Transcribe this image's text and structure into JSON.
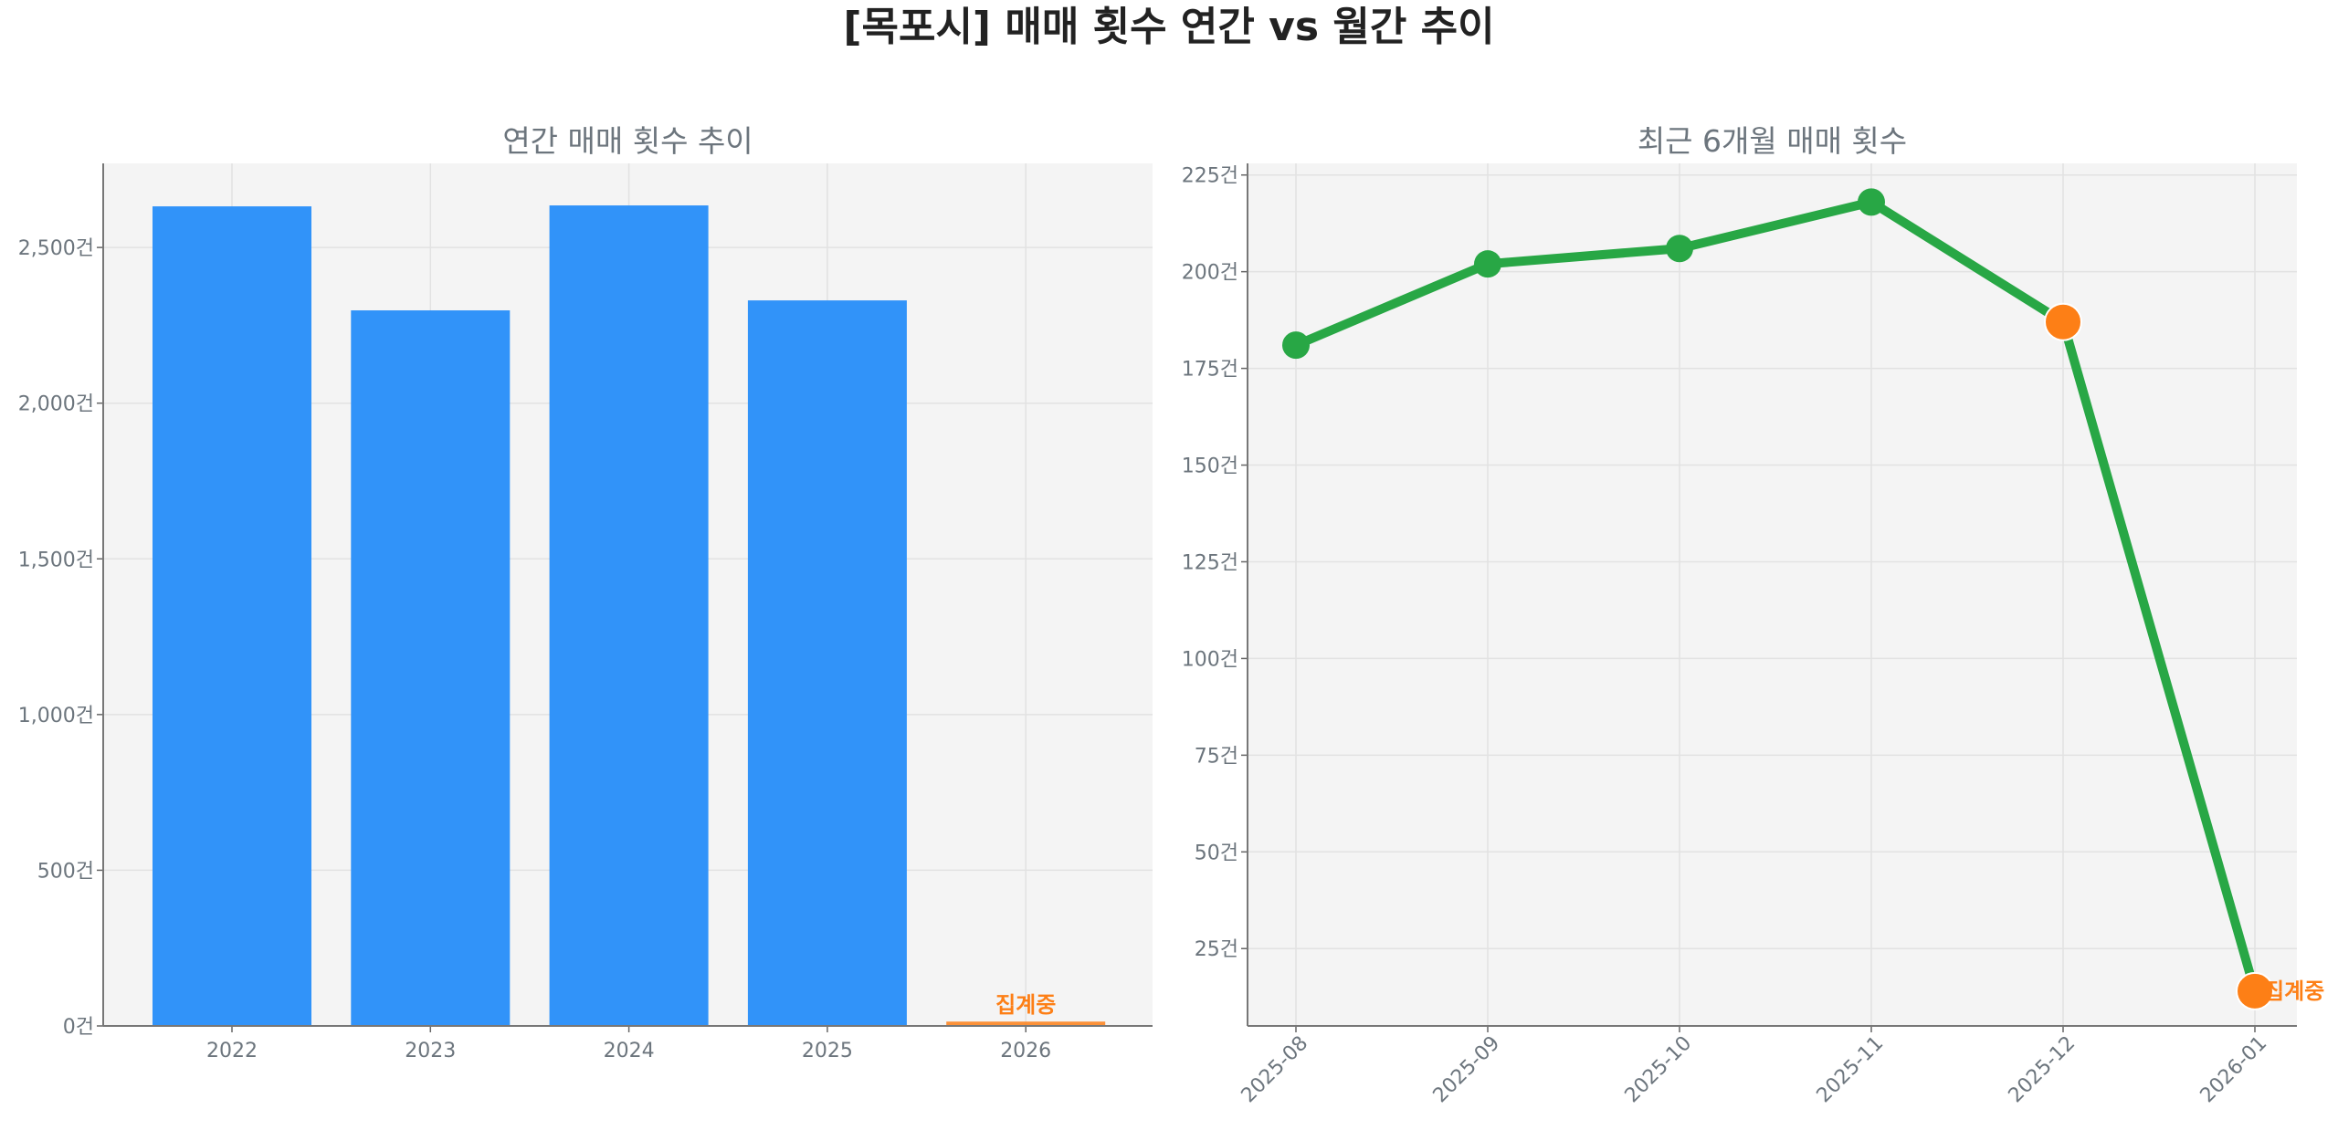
{
  "title": "[목포시] 매매 횟수 연간 vs 월간 추이",
  "colors": {
    "bar": "#3193f9",
    "current": "#fd7f16",
    "line": "#28a745",
    "plot_bg": "#f4f4f4",
    "text": "#6c757d"
  },
  "chart_data": [
    {
      "type": "bar",
      "title": "연간 매매 횟수 추이",
      "categories": [
        "2022",
        "2023",
        "2024",
        "2025",
        "2026"
      ],
      "values": [
        2632,
        2298,
        2635,
        2330,
        14
      ],
      "highlight_index": 4,
      "annotation": "집계중",
      "ylim": [
        0,
        2770
      ],
      "yticks": [
        0,
        500,
        1000,
        1500,
        2000,
        2500
      ],
      "ytick_labels": [
        "0건",
        "500건",
        "1,000건",
        "1,500건",
        "2,000건",
        "2,500건"
      ],
      "grid": true
    },
    {
      "type": "line",
      "title": "최근 6개월 매매 횟수",
      "categories": [
        "2025-08",
        "2025-09",
        "2025-10",
        "2025-11",
        "2025-12",
        "2026-01"
      ],
      "values": [
        181,
        202,
        206,
        218,
        187,
        14
      ],
      "highlight_indices": [
        4,
        5
      ],
      "annotation": "집계중",
      "ylim": [
        5,
        228
      ],
      "yticks": [
        25,
        50,
        75,
        100,
        125,
        150,
        175,
        200,
        225
      ],
      "ytick_labels": [
        "25건",
        "50건",
        "75건",
        "100건",
        "125건",
        "150건",
        "175건",
        "200건",
        "225건"
      ],
      "grid": true
    }
  ]
}
